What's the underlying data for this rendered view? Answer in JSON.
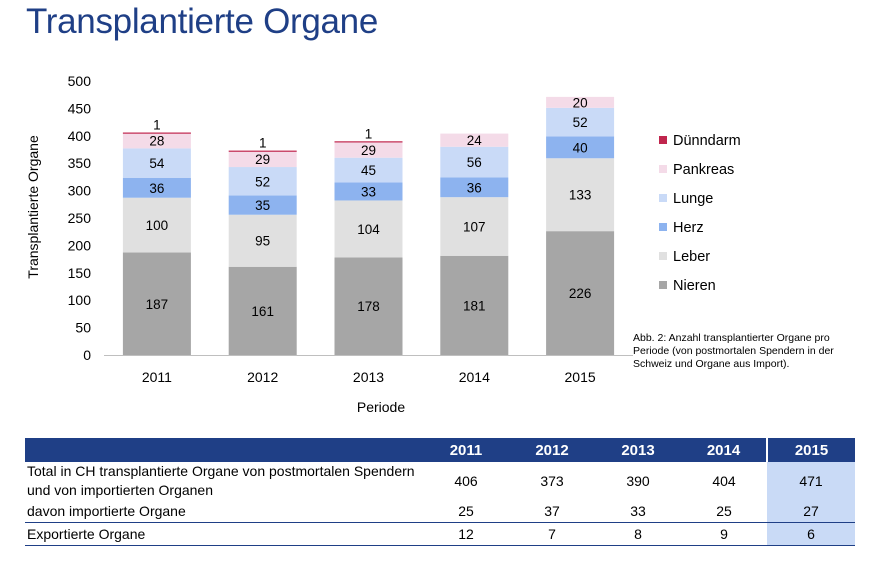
{
  "title": "Transplantierte Organe",
  "chart_data": {
    "type": "bar",
    "stacked": true,
    "categories": [
      "2011",
      "2012",
      "2013",
      "2014",
      "2015"
    ],
    "series": [
      {
        "name": "Nieren",
        "values": [
          187,
          161,
          178,
          181,
          226
        ],
        "color": "#a6a6a6"
      },
      {
        "name": "Leber",
        "values": [
          100,
          95,
          104,
          107,
          133
        ],
        "color": "#e0e0e0"
      },
      {
        "name": "Herz",
        "values": [
          36,
          35,
          33,
          36,
          40
        ],
        "color": "#8db3ef"
      },
      {
        "name": "Lunge",
        "values": [
          54,
          52,
          45,
          56,
          52
        ],
        "color": "#c9daf7"
      },
      {
        "name": "Pankreas",
        "values": [
          28,
          29,
          29,
          24,
          20
        ],
        "color": "#f4dbe8"
      },
      {
        "name": "Dünndarm",
        "values": [
          1,
          1,
          1,
          0,
          0
        ],
        "color": "#c0264d"
      }
    ],
    "ylabel": "Transplantierte Organe",
    "xlabel": "Periode",
    "ylim": [
      0,
      500
    ],
    "yticks": [
      0,
      50,
      100,
      150,
      200,
      250,
      300,
      350,
      400,
      450,
      500
    ],
    "legend_position": "right",
    "grid": false
  },
  "caption": "Abb. 2: Anzahl transplantierter Organe pro Periode (von postmortalen Spendern in der Schweiz und Organe aus Import).",
  "table": {
    "headers": [
      "",
      "2011",
      "2012",
      "2013",
      "2014",
      "2015"
    ],
    "rows": [
      {
        "label": "Total in CH transplantierte Organe von postmortalen Spendern und von importierten Organen",
        "values": [
          "406",
          "373",
          "390",
          "404",
          "471"
        ]
      },
      {
        "label": "davon importierte Organe",
        "values": [
          "25",
          "37",
          "33",
          "25",
          "27"
        ]
      },
      {
        "label": "Exportierte Organe",
        "values": [
          "12",
          "7",
          "8",
          "9",
          "6"
        ]
      }
    ]
  }
}
